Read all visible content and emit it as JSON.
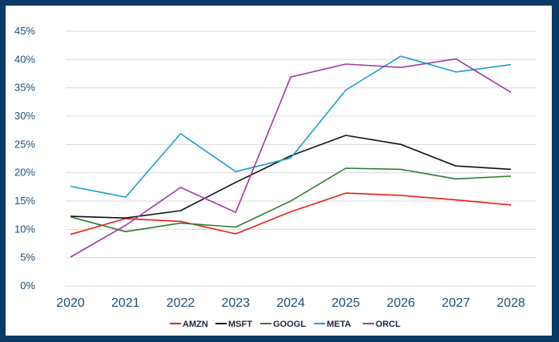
{
  "chart_data": {
    "type": "line",
    "title": "",
    "xlabel": "",
    "ylabel": "",
    "x": [
      "2020",
      "2021",
      "2022",
      "2023",
      "2024",
      "2025",
      "2026",
      "2027",
      "2028"
    ],
    "y_ticks": [
      "0%",
      "5%",
      "10%",
      "15%",
      "20%",
      "25%",
      "30%",
      "35%",
      "40%",
      "45%"
    ],
    "ylim": [
      0,
      45
    ],
    "grid": true,
    "legend_position": "bottom",
    "series": [
      {
        "name": "AMZN",
        "color": "#e8201a",
        "values": [
          9.1,
          11.9,
          11.4,
          9.2,
          13.1,
          16.4,
          16.0,
          15.2,
          14.3
        ]
      },
      {
        "name": "MSFT",
        "color": "#111111",
        "values": [
          12.3,
          12.0,
          13.3,
          18.3,
          23.0,
          26.6,
          25.0,
          21.2,
          20.6
        ]
      },
      {
        "name": "GOOGL",
        "color": "#2e7d32",
        "values": [
          12.2,
          9.6,
          11.1,
          10.4,
          15.0,
          20.8,
          20.6,
          18.9,
          19.4
        ]
      },
      {
        "name": "META",
        "color": "#1e9bd7",
        "values": [
          17.6,
          15.7,
          26.9,
          20.2,
          22.6,
          34.6,
          40.6,
          37.8,
          39.1
        ]
      },
      {
        "name": "ORCL",
        "color": "#a03aa8",
        "values": [
          5.1,
          10.7,
          17.4,
          13.0,
          36.9,
          39.2,
          38.6,
          40.1,
          34.2
        ]
      }
    ]
  }
}
